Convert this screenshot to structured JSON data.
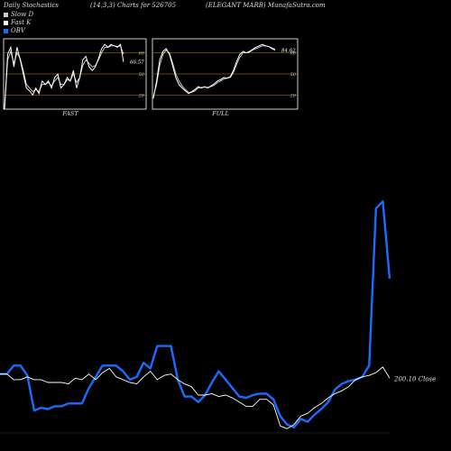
{
  "header": {
    "left": "Daily Stochastics",
    "center": "(14,3,3) Charts for 526705",
    "right": "(ELEGANT MARB) MunafaSutra.com"
  },
  "legend": [
    {
      "label": "Slow D",
      "color": "#cccccc"
    },
    {
      "label": "Fast K",
      "color": "#ffffff"
    },
    {
      "label": "OBV",
      "color": "#1a6cff"
    }
  ],
  "colors": {
    "background": "#000000",
    "stoch_line": "#ffffff",
    "level_line": "#8a5a00",
    "obv": "#1a6cff",
    "price": "#ffffff"
  },
  "chart_data": [
    {
      "type": "line",
      "name": "stochastic-fast",
      "title": "",
      "xlabel": "FAST",
      "ylim": [
        0,
        100
      ],
      "levels": [
        20,
        50,
        80
      ],
      "level_labels": [
        "80",
        "50",
        "20"
      ],
      "last_value_label": "66.57",
      "series": [
        {
          "name": "",
          "values": [
            0,
            78,
            88,
            60,
            88,
            70,
            50,
            30,
            26,
            20,
            30,
            22,
            40,
            35,
            40,
            30,
            45,
            50,
            30,
            35,
            45,
            40,
            55,
            30,
            45,
            70,
            75,
            60,
            55,
            60,
            72,
            86,
            92,
            88,
            92,
            90,
            88,
            92,
            67
          ]
        },
        {
          "name": "",
          "values": [
            0,
            70,
            82,
            65,
            80,
            72,
            55,
            35,
            30,
            25,
            28,
            25,
            35,
            35,
            38,
            33,
            40,
            45,
            35,
            35,
            42,
            40,
            50,
            38,
            45,
            62,
            70,
            65,
            60,
            62,
            70,
            80,
            88,
            88,
            90,
            90,
            89,
            90,
            78
          ]
        }
      ]
    },
    {
      "type": "line",
      "name": "stochastic-full",
      "title": "",
      "xlabel": "FULL",
      "ylim": [
        0,
        100
      ],
      "levels": [
        20,
        50,
        80
      ],
      "level_labels": [
        "80",
        "50",
        "20"
      ],
      "last_value_label": "84.62",
      "series": [
        {
          "name": "",
          "values": [
            15,
            40,
            70,
            82,
            86,
            78,
            62,
            45,
            35,
            30,
            26,
            22,
            25,
            28,
            32,
            30,
            32,
            30,
            33,
            36,
            40,
            42,
            45,
            44,
            46,
            55,
            68,
            78,
            82,
            80,
            82,
            85,
            88,
            90,
            92,
            90,
            89,
            86,
            84
          ]
        },
        {
          "name": "",
          "values": [
            18,
            35,
            62,
            78,
            84,
            80,
            66,
            50,
            40,
            33,
            28,
            24,
            24,
            26,
            30,
            31,
            31,
            31,
            32,
            34,
            38,
            40,
            43,
            44,
            45,
            52,
            64,
            74,
            80,
            80,
            81,
            84,
            86,
            88,
            90,
            90,
            89,
            87,
            85
          ]
        }
      ]
    },
    {
      "type": "line",
      "name": "obv-and-price",
      "title": "",
      "price_label": "200.10",
      "price_label_suffix": "Close",
      "series": [
        {
          "name": "",
          "values": [
            42,
            42,
            48,
            48,
            41,
            16,
            18,
            17,
            19,
            19,
            21,
            21,
            21,
            32,
            40,
            48,
            48,
            48,
            44,
            38,
            40,
            50,
            46,
            62,
            62,
            62,
            38,
            26,
            26,
            22,
            27,
            36,
            44,
            38,
            32,
            26,
            25,
            27,
            28,
            28,
            24,
            12,
            6,
            4,
            10,
            8,
            13,
            17,
            22,
            31,
            35,
            37,
            38,
            40,
            48,
            160,
            165,
            110
          ]
        },
        {
          "name": "",
          "values": [
            42,
            42,
            38,
            38,
            40,
            38,
            38,
            36,
            36,
            36,
            35,
            39,
            38,
            42,
            38,
            43,
            46,
            40,
            38,
            36,
            35,
            40,
            44,
            38,
            41,
            42,
            38,
            35,
            33,
            27,
            27,
            28,
            26,
            27,
            25,
            22,
            19,
            19,
            24,
            24,
            20,
            5,
            3,
            6,
            12,
            14,
            18,
            21,
            25,
            28,
            30,
            33,
            38,
            40,
            41,
            43,
            47,
            39
          ]
        }
      ]
    }
  ]
}
